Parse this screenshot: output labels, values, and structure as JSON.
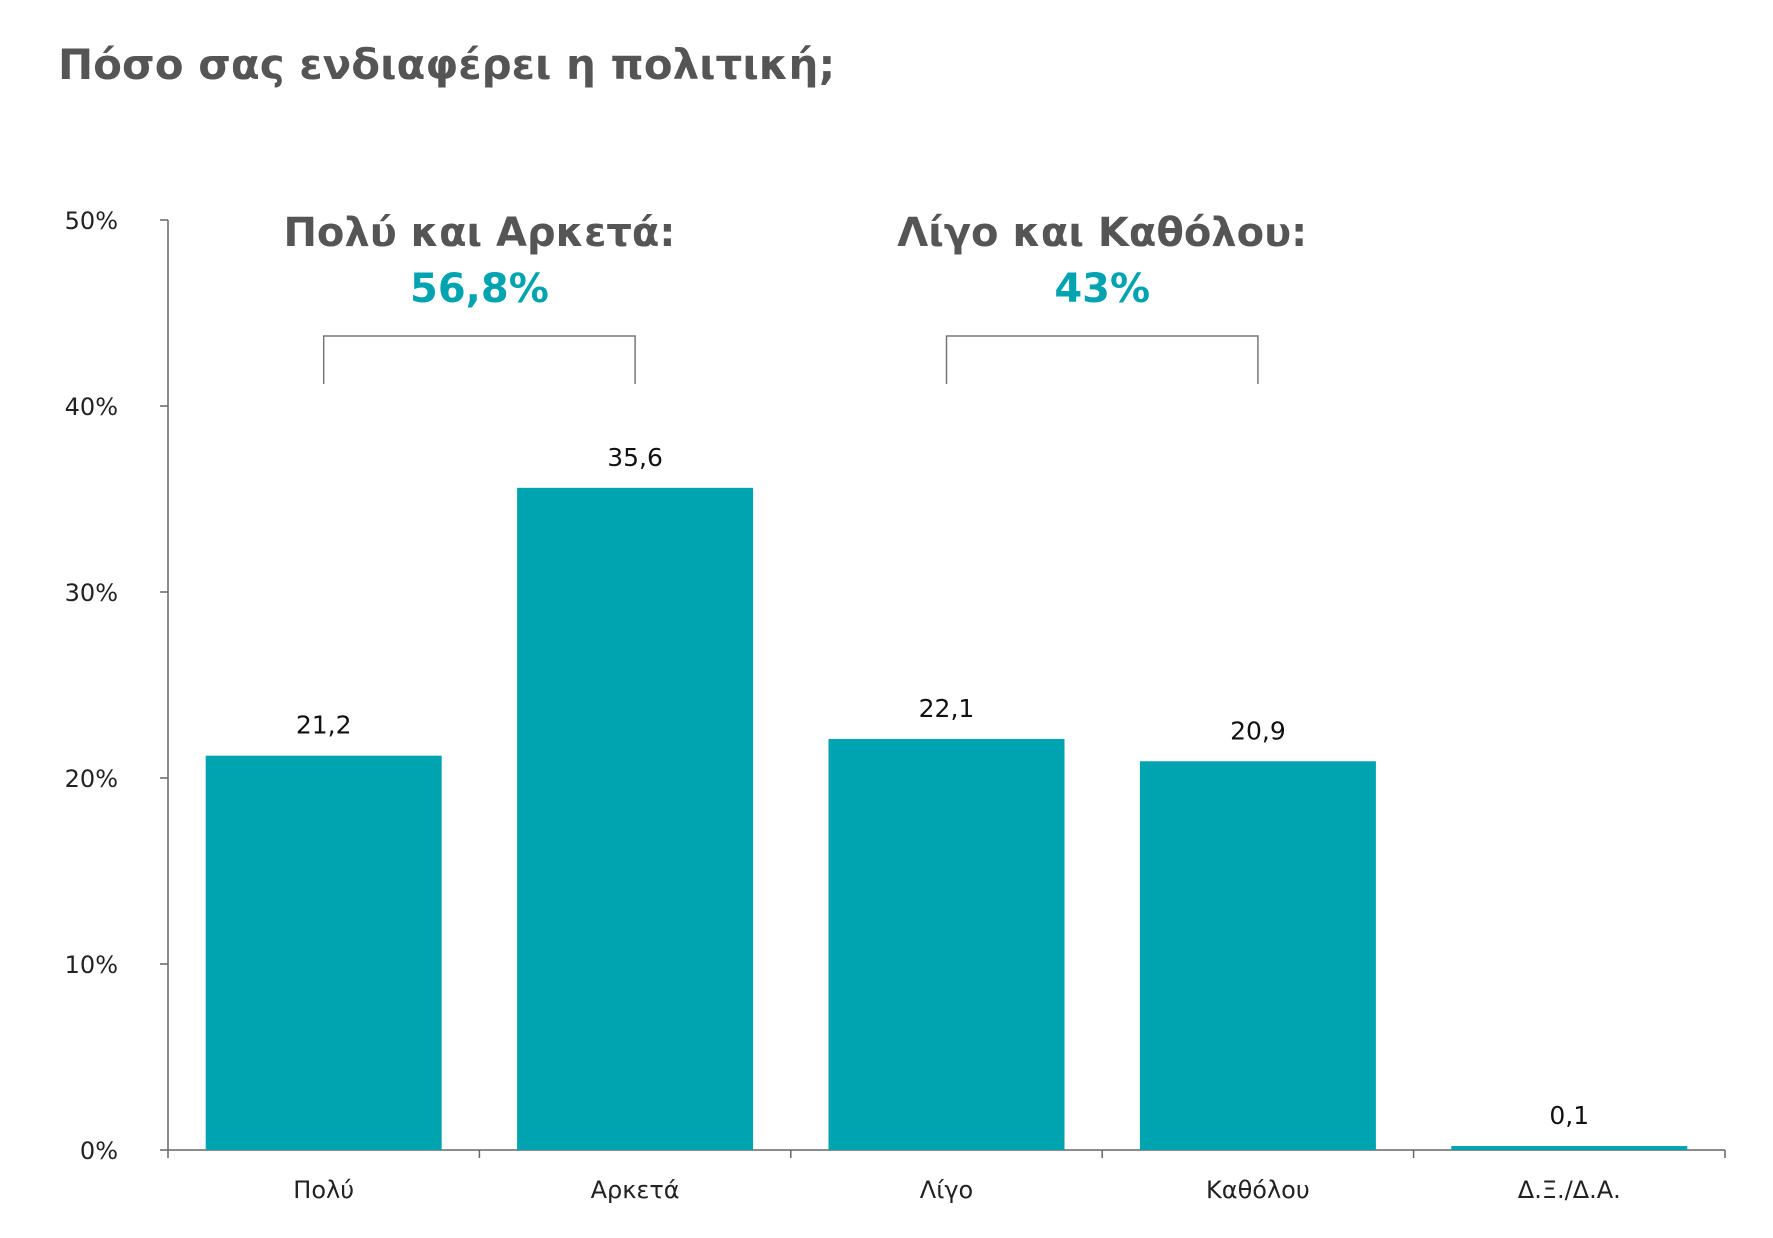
{
  "chart_data": {
    "type": "bar",
    "title": "Πόσο σας ενδιαφέρει η πολιτική;",
    "categories": [
      "Πολύ",
      "Αρκετά",
      "Λίγο",
      "Καθόλου",
      "Δ.Ξ./Δ.Α."
    ],
    "values": [
      21.2,
      35.6,
      22.1,
      20.9,
      0.1
    ],
    "value_labels": [
      "21,2",
      "35,6",
      "22,1",
      "20,9",
      "0,1"
    ],
    "ylim": [
      0,
      50
    ],
    "yticks": [
      0,
      10,
      20,
      30,
      40,
      50
    ],
    "ytick_labels": [
      "0%",
      "10%",
      "20%",
      "30%",
      "40%",
      "50%"
    ],
    "xlabel": "",
    "ylabel": "",
    "grid": false,
    "bar_color": "#00a3b0",
    "annotations": [
      {
        "label": "Πολύ και Αρκετά:",
        "value": "56,8%",
        "categories": [
          0,
          1
        ]
      },
      {
        "label": "Λίγο και Καθόλου:",
        "value": "43%",
        "categories": [
          2,
          3
        ]
      }
    ],
    "annotation_value_color": "#00a3b0"
  }
}
